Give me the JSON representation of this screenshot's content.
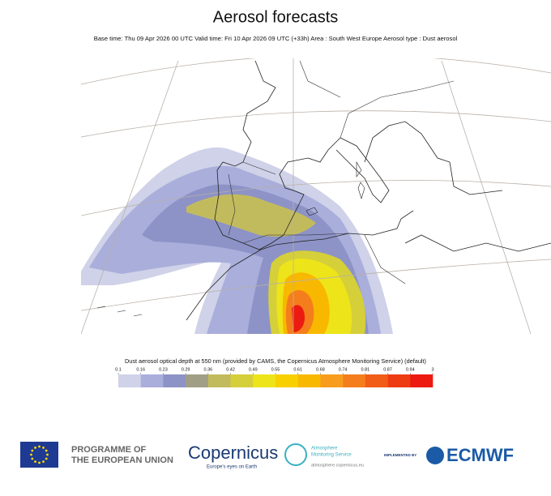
{
  "header": {
    "title": "Aerosol forecasts",
    "subtitle": "Base time: Thu 09 Apr 2026 00 UTC Valid time: Fri 10 Apr 2026 09 UTC (+33h) Area : South West Europe Aerosol type : Dust aerosol"
  },
  "legend": {
    "label": "Dust aerosol optical depth at 550 nm (provided by CAMS, the Copernicus Atmosphere Monitoring Service) (default)",
    "ticks": [
      0.1,
      0.16,
      0.23,
      0.29,
      0.36,
      0.42,
      0.49,
      0.55,
      0.61,
      0.68,
      0.74,
      0.81,
      0.87,
      0.94,
      3
    ],
    "colors": [
      "#cfd2e8",
      "#a9aedb",
      "#8d93c6",
      "#a09f86",
      "#c2bb5e",
      "#d5cf3a",
      "#ede41a",
      "#f8d000",
      "#f9b800",
      "#f89c1e",
      "#f47e1c",
      "#f15c16",
      "#ee3c12",
      "#ec1a10"
    ]
  },
  "footer": {
    "eu_line1": "PROGRAMME OF",
    "eu_line2": "THE EUROPEAN UNION",
    "copernicus": "Copernicus",
    "copernicus_tagline": "Europe's eyes on Earth",
    "cams_line1": "Atmosphere",
    "cams_line2": "Monitoring Service",
    "cams_url": "atmosphere.copernicus.eu",
    "implemented_by": "IMPLEMENTED BY",
    "ecmwf": "ECMWF"
  }
}
